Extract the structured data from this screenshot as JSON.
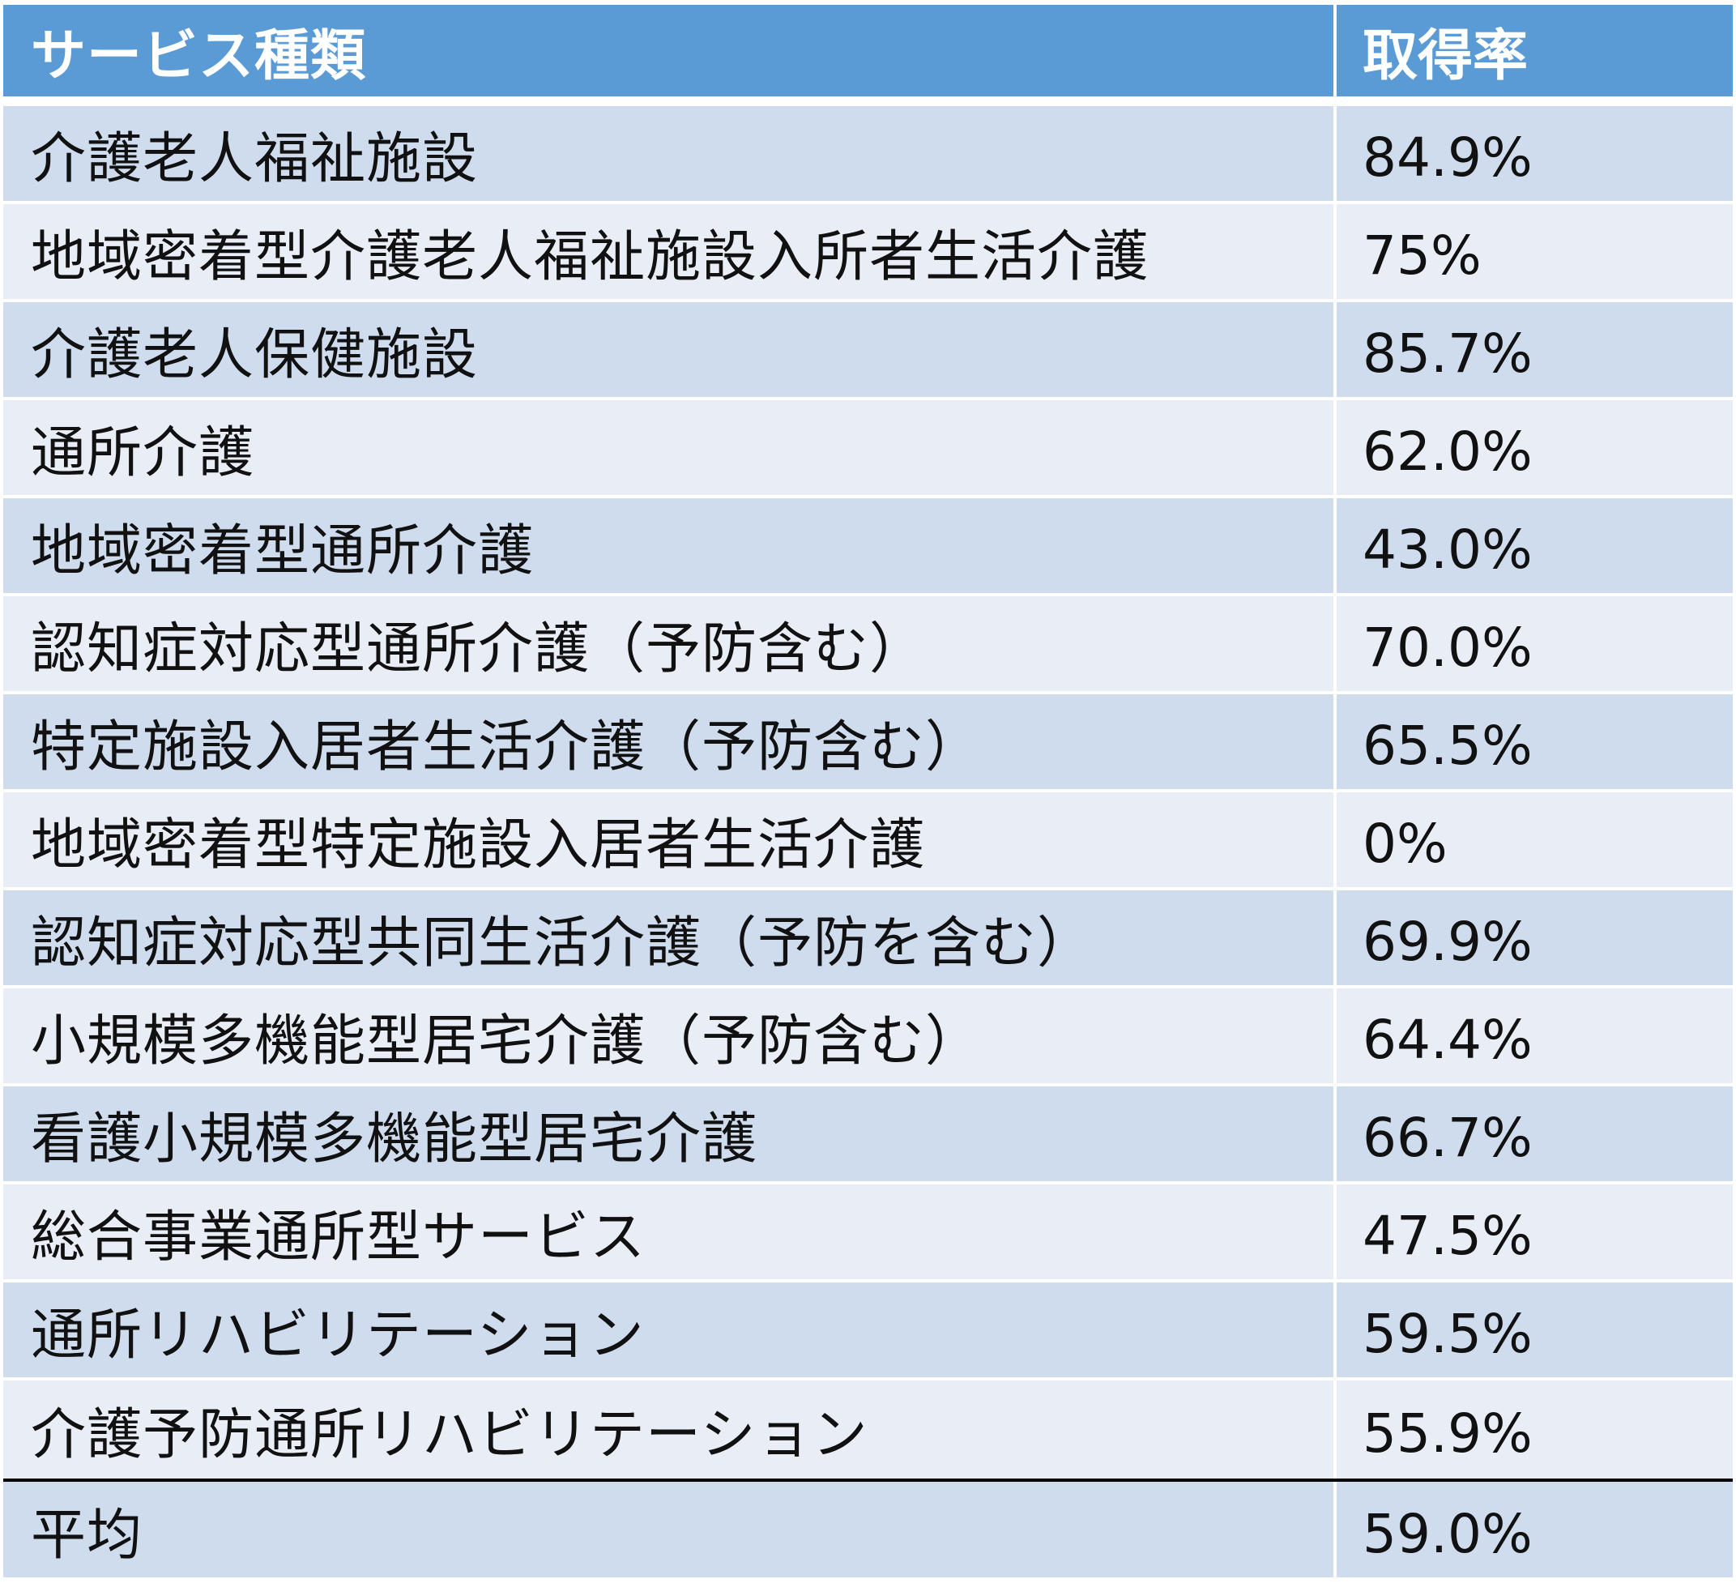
{
  "table": {
    "header": {
      "service_type": "サービス種類",
      "rate": "取得率"
    },
    "rows": [
      {
        "service": "介護老人福祉施設",
        "rate": "84.9%"
      },
      {
        "service": "地域密着型介護老人福祉施設入所者生活介護",
        "rate": "75%"
      },
      {
        "service": "介護老人保健施設",
        "rate": "85.7%"
      },
      {
        "service": "通所介護",
        "rate": "62.0%"
      },
      {
        "service": "地域密着型通所介護",
        "rate": "43.0%"
      },
      {
        "service": "認知症対応型通所介護（予防含む）",
        "rate": "70.0%"
      },
      {
        "service": "特定施設入居者生活介護（予防含む）",
        "rate": "65.5%"
      },
      {
        "service": "地域密着型特定施設入居者生活介護",
        "rate": "0%"
      },
      {
        "service": "認知症対応型共同生活介護（予防を含む）",
        "rate": "69.9%"
      },
      {
        "service": "小規模多機能型居宅介護（予防含む）",
        "rate": "64.4%"
      },
      {
        "service": "看護小規模多機能型居宅介護",
        "rate": "66.7%"
      },
      {
        "service": "総合事業通所型サービス",
        "rate": "47.5%"
      },
      {
        "service": "通所リハビリテーション",
        "rate": "59.5%"
      },
      {
        "service": "介護予防通所リハビリテーション",
        "rate": "55.9%"
      }
    ],
    "total": {
      "label": "平均",
      "rate": "59.0%"
    }
  },
  "colors": {
    "header_bg": "#5b9bd5",
    "row_band_dark": "#cfdcee",
    "row_band_light": "#e9edf6",
    "divider": "#000000"
  }
}
